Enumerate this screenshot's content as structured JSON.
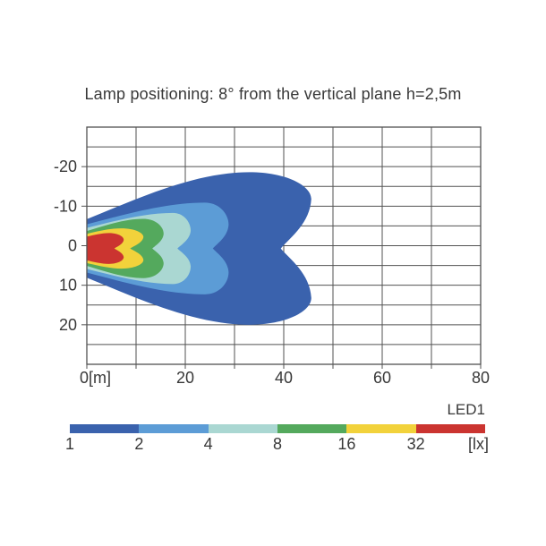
{
  "page": {
    "background": "#ffffff"
  },
  "chart_data": {
    "type": "contour",
    "title": "Lamp positioning: 8° from the vertical plane h=2,5m",
    "xlabel_unit": "[m]",
    "value_unit": "[lx]",
    "xlim": [
      0,
      80
    ],
    "ylim": [
      -30,
      30
    ],
    "x_grid_step_m": 10,
    "y_grid_step_m": 5,
    "grid_on": true,
    "grid_color": "#525252",
    "text_color": "#383838",
    "x_ticks": [
      {
        "m": 0,
        "label": "0[m]"
      },
      {
        "m": 20,
        "label": "20"
      },
      {
        "m": 40,
        "label": "40"
      },
      {
        "m": 60,
        "label": "60"
      },
      {
        "m": 80,
        "label": "80"
      }
    ],
    "y_ticks": [
      {
        "m": -20,
        "label": "-20"
      },
      {
        "m": -10,
        "label": "-10"
      },
      {
        "m": 0,
        "label": "0"
      },
      {
        "m": 10,
        "label": "10"
      },
      {
        "m": 20,
        "label": "20"
      }
    ],
    "beam_center_offset_m": 0.7,
    "contours": [
      {
        "level_lx": 1,
        "color": "#3A62AD",
        "y0": 7.4,
        "xw": 33.0,
        "ymax": 19.3,
        "xlobe": 45.6,
        "ylobe": 12.5,
        "xnotch": 39.4
      },
      {
        "level_lx": 2,
        "color": "#5C9CD6",
        "y0": 6.1,
        "xw": 24.0,
        "ymax": 11.6,
        "xlobe": 28.8,
        "ylobe": 6.0,
        "xnotch": 25.6
      },
      {
        "level_lx": 4,
        "color": "#AAD7D2",
        "y0": 5.2,
        "xw": 17.5,
        "ymax": 9.0,
        "xlobe": 21.1,
        "ylobe": 4.5,
        "xnotch": 18.4
      },
      {
        "level_lx": 8,
        "color": "#54A95D",
        "y0": 4.4,
        "xw": 11.5,
        "ymax": 7.5,
        "xlobe": 15.6,
        "ylobe": 3.7,
        "xnotch": 13.3
      },
      {
        "level_lx": 16,
        "color": "#F2D23B",
        "y0": 3.7,
        "xw": 7.0,
        "ymax": 5.1,
        "xlobe": 11.5,
        "ylobe": 2.9,
        "xnotch": 8.8
      },
      {
        "level_lx": 32,
        "color": "#CB3430",
        "y0": 3.0,
        "xw": 4.5,
        "ymax": 3.9,
        "xlobe": 7.5,
        "ylobe": 2.2,
        "xnotch": 5.6
      }
    ]
  },
  "legend": {
    "series_label": "LED1",
    "unit_label": "[lx]",
    "tick_labels": [
      "1",
      "2",
      "4",
      "8",
      "16",
      "32"
    ],
    "colors": [
      "#3A62AD",
      "#5C9CD6",
      "#AAD7D2",
      "#54A95D",
      "#F2D23B",
      "#CB3430"
    ]
  }
}
